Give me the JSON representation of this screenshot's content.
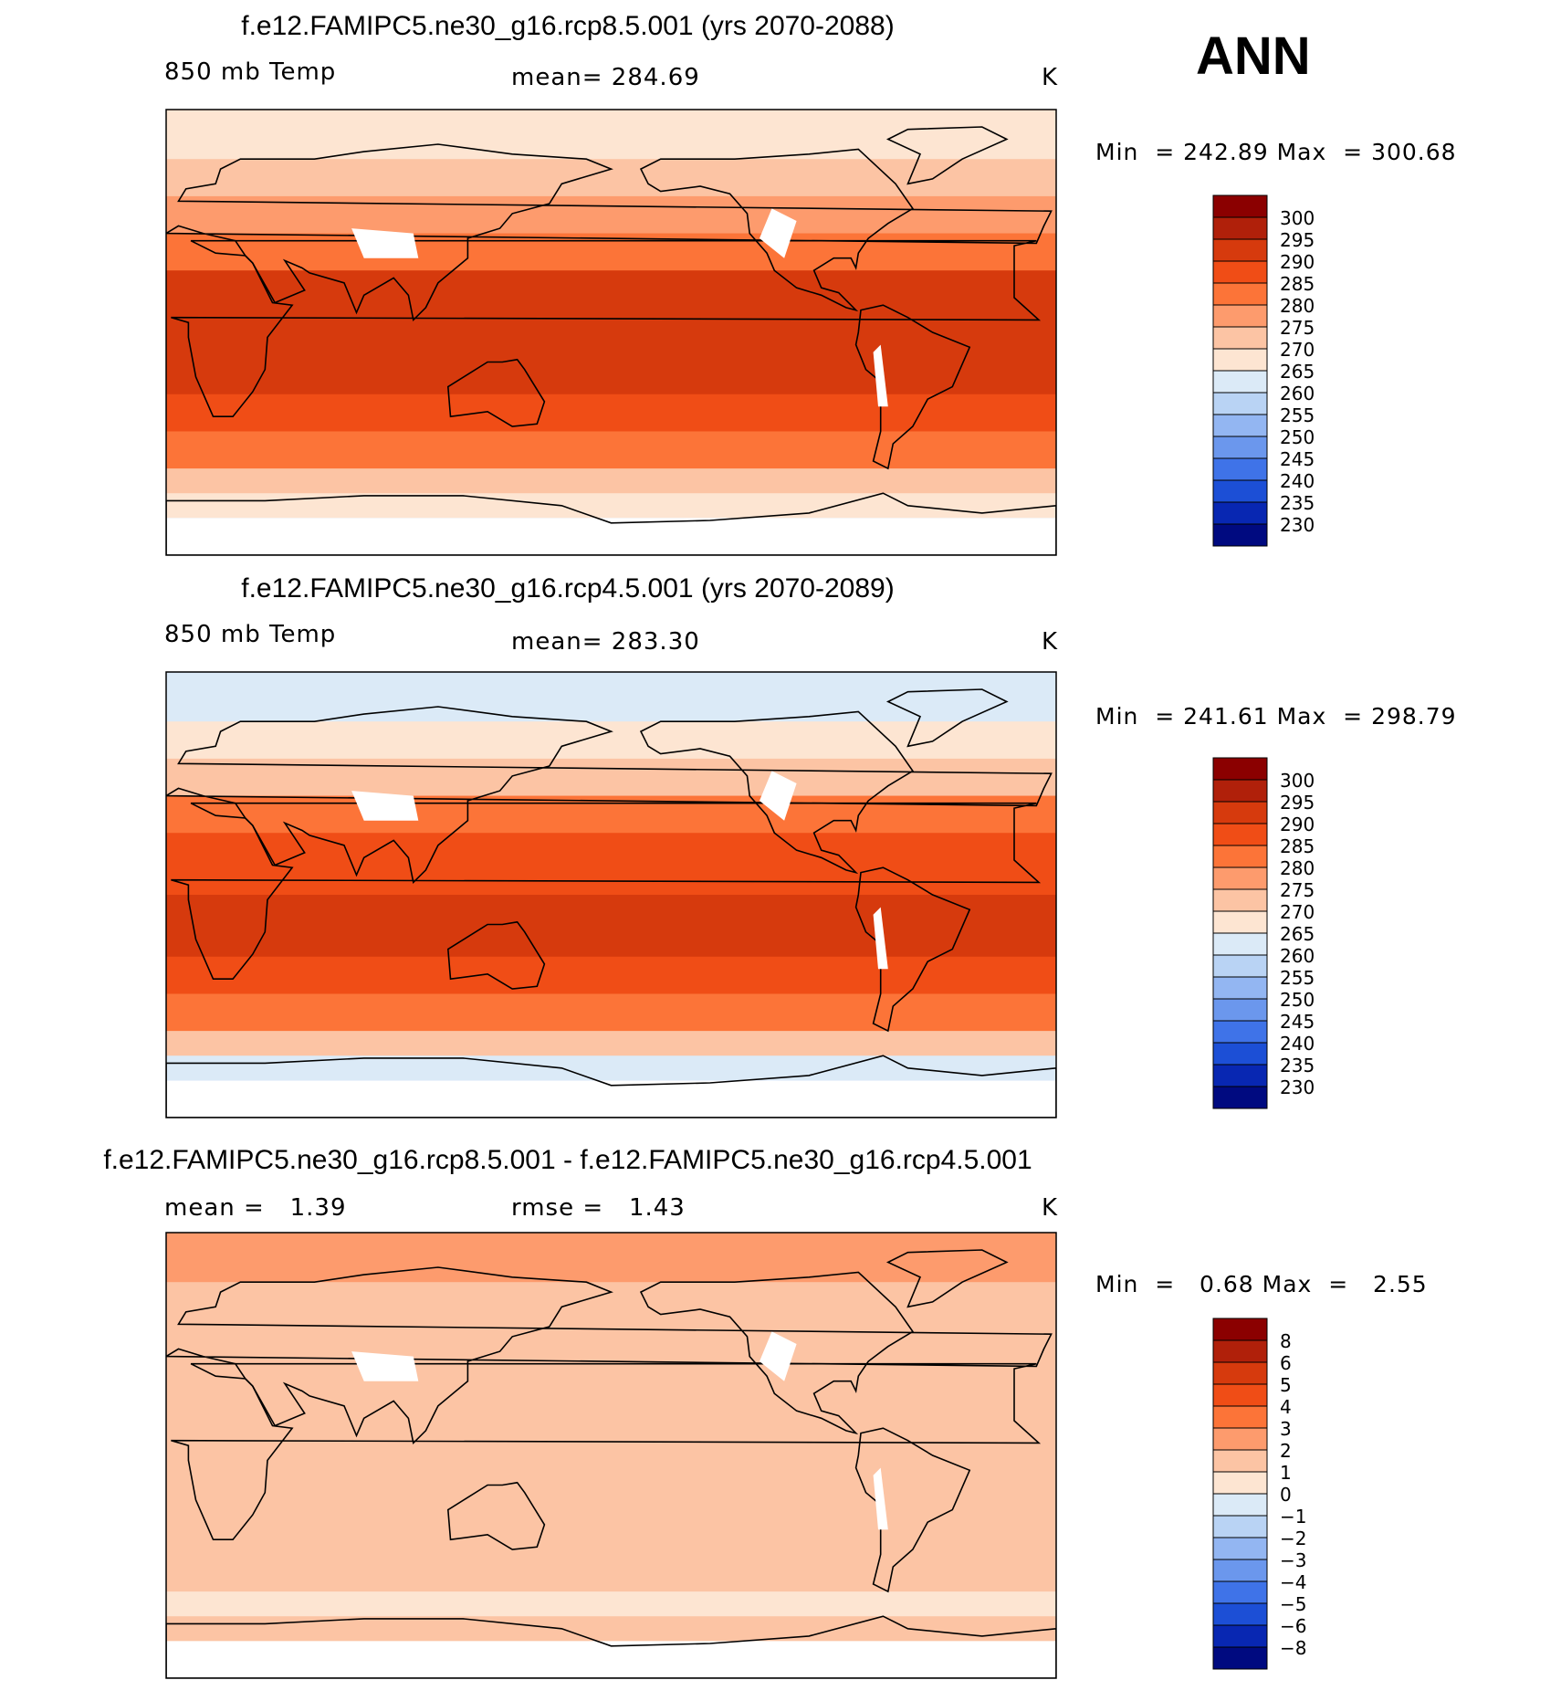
{
  "season": "ANN",
  "chart_data": [
    {
      "type": "heatmap",
      "title": "f.e12.FAMIPC5.ne30_g16.rcp8.5.001 (yrs 2070-2088)",
      "variable": "850 mb Temp",
      "stat_label": "mean=",
      "stat_value": "284.69",
      "units": "K",
      "min_label": "Min  =",
      "min_value": "242.89",
      "max_label": "Max  =",
      "max_value": "300.68",
      "colorbar_levels": [
        "300",
        "295",
        "290",
        "285",
        "280",
        "275",
        "270",
        "265",
        "260",
        "255",
        "250",
        "245",
        "240",
        "235",
        "230"
      ],
      "colorbar_colors": [
        "#8b0000",
        "#b0200a",
        "#d63a0d",
        "#f04d16",
        "#fc7438",
        "#fd9b6d",
        "#fcc4a4",
        "#fde5d2",
        "#dbeaf7",
        "#b9d3f4",
        "#93b6f2",
        "#6b97ed",
        "#3f73e8",
        "#1c4fd6",
        "#0827b2",
        "#000a80"
      ],
      "bands_by_latitude": [
        {
          "lat": 90,
          "value": 268
        },
        {
          "lat": 70,
          "value": 271
        },
        {
          "lat": 55,
          "value": 276
        },
        {
          "lat": 40,
          "value": 283
        },
        {
          "lat": 25,
          "value": 290
        },
        {
          "lat": 0,
          "value": 292
        },
        {
          "lat": -25,
          "value": 289
        },
        {
          "lat": -40,
          "value": 281
        },
        {
          "lat": -55,
          "value": 272
        },
        {
          "lat": -65,
          "value": 266
        },
        {
          "lat": -75,
          "value": 255
        }
      ]
    },
    {
      "type": "heatmap",
      "title": "f.e12.FAMIPC5.ne30_g16.rcp4.5.001 (yrs 2070-2089)",
      "variable": "850 mb Temp",
      "stat_label": "mean=",
      "stat_value": "283.30",
      "units": "K",
      "min_label": "Min  =",
      "min_value": "241.61",
      "max_label": "Max  =",
      "max_value": "298.79",
      "colorbar_levels": [
        "300",
        "295",
        "290",
        "285",
        "280",
        "275",
        "270",
        "265",
        "260",
        "255",
        "250",
        "245",
        "240",
        "235",
        "230"
      ],
      "colorbar_colors": [
        "#8b0000",
        "#b0200a",
        "#d63a0d",
        "#f04d16",
        "#fc7438",
        "#fd9b6d",
        "#fcc4a4",
        "#fde5d2",
        "#dbeaf7",
        "#b9d3f4",
        "#93b6f2",
        "#6b97ed",
        "#3f73e8",
        "#1c4fd6",
        "#0827b2",
        "#000a80"
      ],
      "bands_by_latitude": [
        {
          "lat": 90,
          "value": 263
        },
        {
          "lat": 70,
          "value": 268
        },
        {
          "lat": 55,
          "value": 274
        },
        {
          "lat": 40,
          "value": 282
        },
        {
          "lat": 25,
          "value": 289
        },
        {
          "lat": 0,
          "value": 291
        },
        {
          "lat": -25,
          "value": 288
        },
        {
          "lat": -40,
          "value": 280
        },
        {
          "lat": -55,
          "value": 271
        },
        {
          "lat": -65,
          "value": 263
        },
        {
          "lat": -75,
          "value": 253
        }
      ]
    },
    {
      "type": "heatmap",
      "title": "f.e12.FAMIPC5.ne30_g16.rcp8.5.001 - f.e12.FAMIPC5.ne30_g16.rcp4.5.001",
      "variable": "mean =",
      "variable_value": "1.39",
      "stat_label": "rmse =",
      "stat_value": "1.43",
      "units": "K",
      "min_label": "Min  =",
      "min_value": "0.68",
      "max_label": "Max  =",
      "max_value": "2.55",
      "colorbar_levels": [
        "8",
        "6",
        "5",
        "4",
        "3",
        "2",
        "1",
        "0",
        "−1",
        "−2",
        "−3",
        "−4",
        "−5",
        "−6",
        "−8"
      ],
      "colorbar_colors": [
        "#8b0000",
        "#b0200a",
        "#d63a0d",
        "#f04d16",
        "#fc7438",
        "#fd9b6d",
        "#fcc4a4",
        "#fde5d2",
        "#dbeaf7",
        "#b9d3f4",
        "#93b6f2",
        "#6b97ed",
        "#3f73e8",
        "#1c4fd6",
        "#0827b2",
        "#000a80"
      ],
      "bands_by_latitude": [
        {
          "lat": 90,
          "value": 2.4
        },
        {
          "lat": 70,
          "value": 1.8
        },
        {
          "lat": 55,
          "value": 1.6
        },
        {
          "lat": 40,
          "value": 1.5
        },
        {
          "lat": 20,
          "value": 1.3
        },
        {
          "lat": 0,
          "value": 1.2
        },
        {
          "lat": -25,
          "value": 1.1
        },
        {
          "lat": -40,
          "value": 1.4
        },
        {
          "lat": -55,
          "value": 0.9
        },
        {
          "lat": -65,
          "value": 1.4
        },
        {
          "lat": -75,
          "value": 1.5
        }
      ]
    }
  ]
}
